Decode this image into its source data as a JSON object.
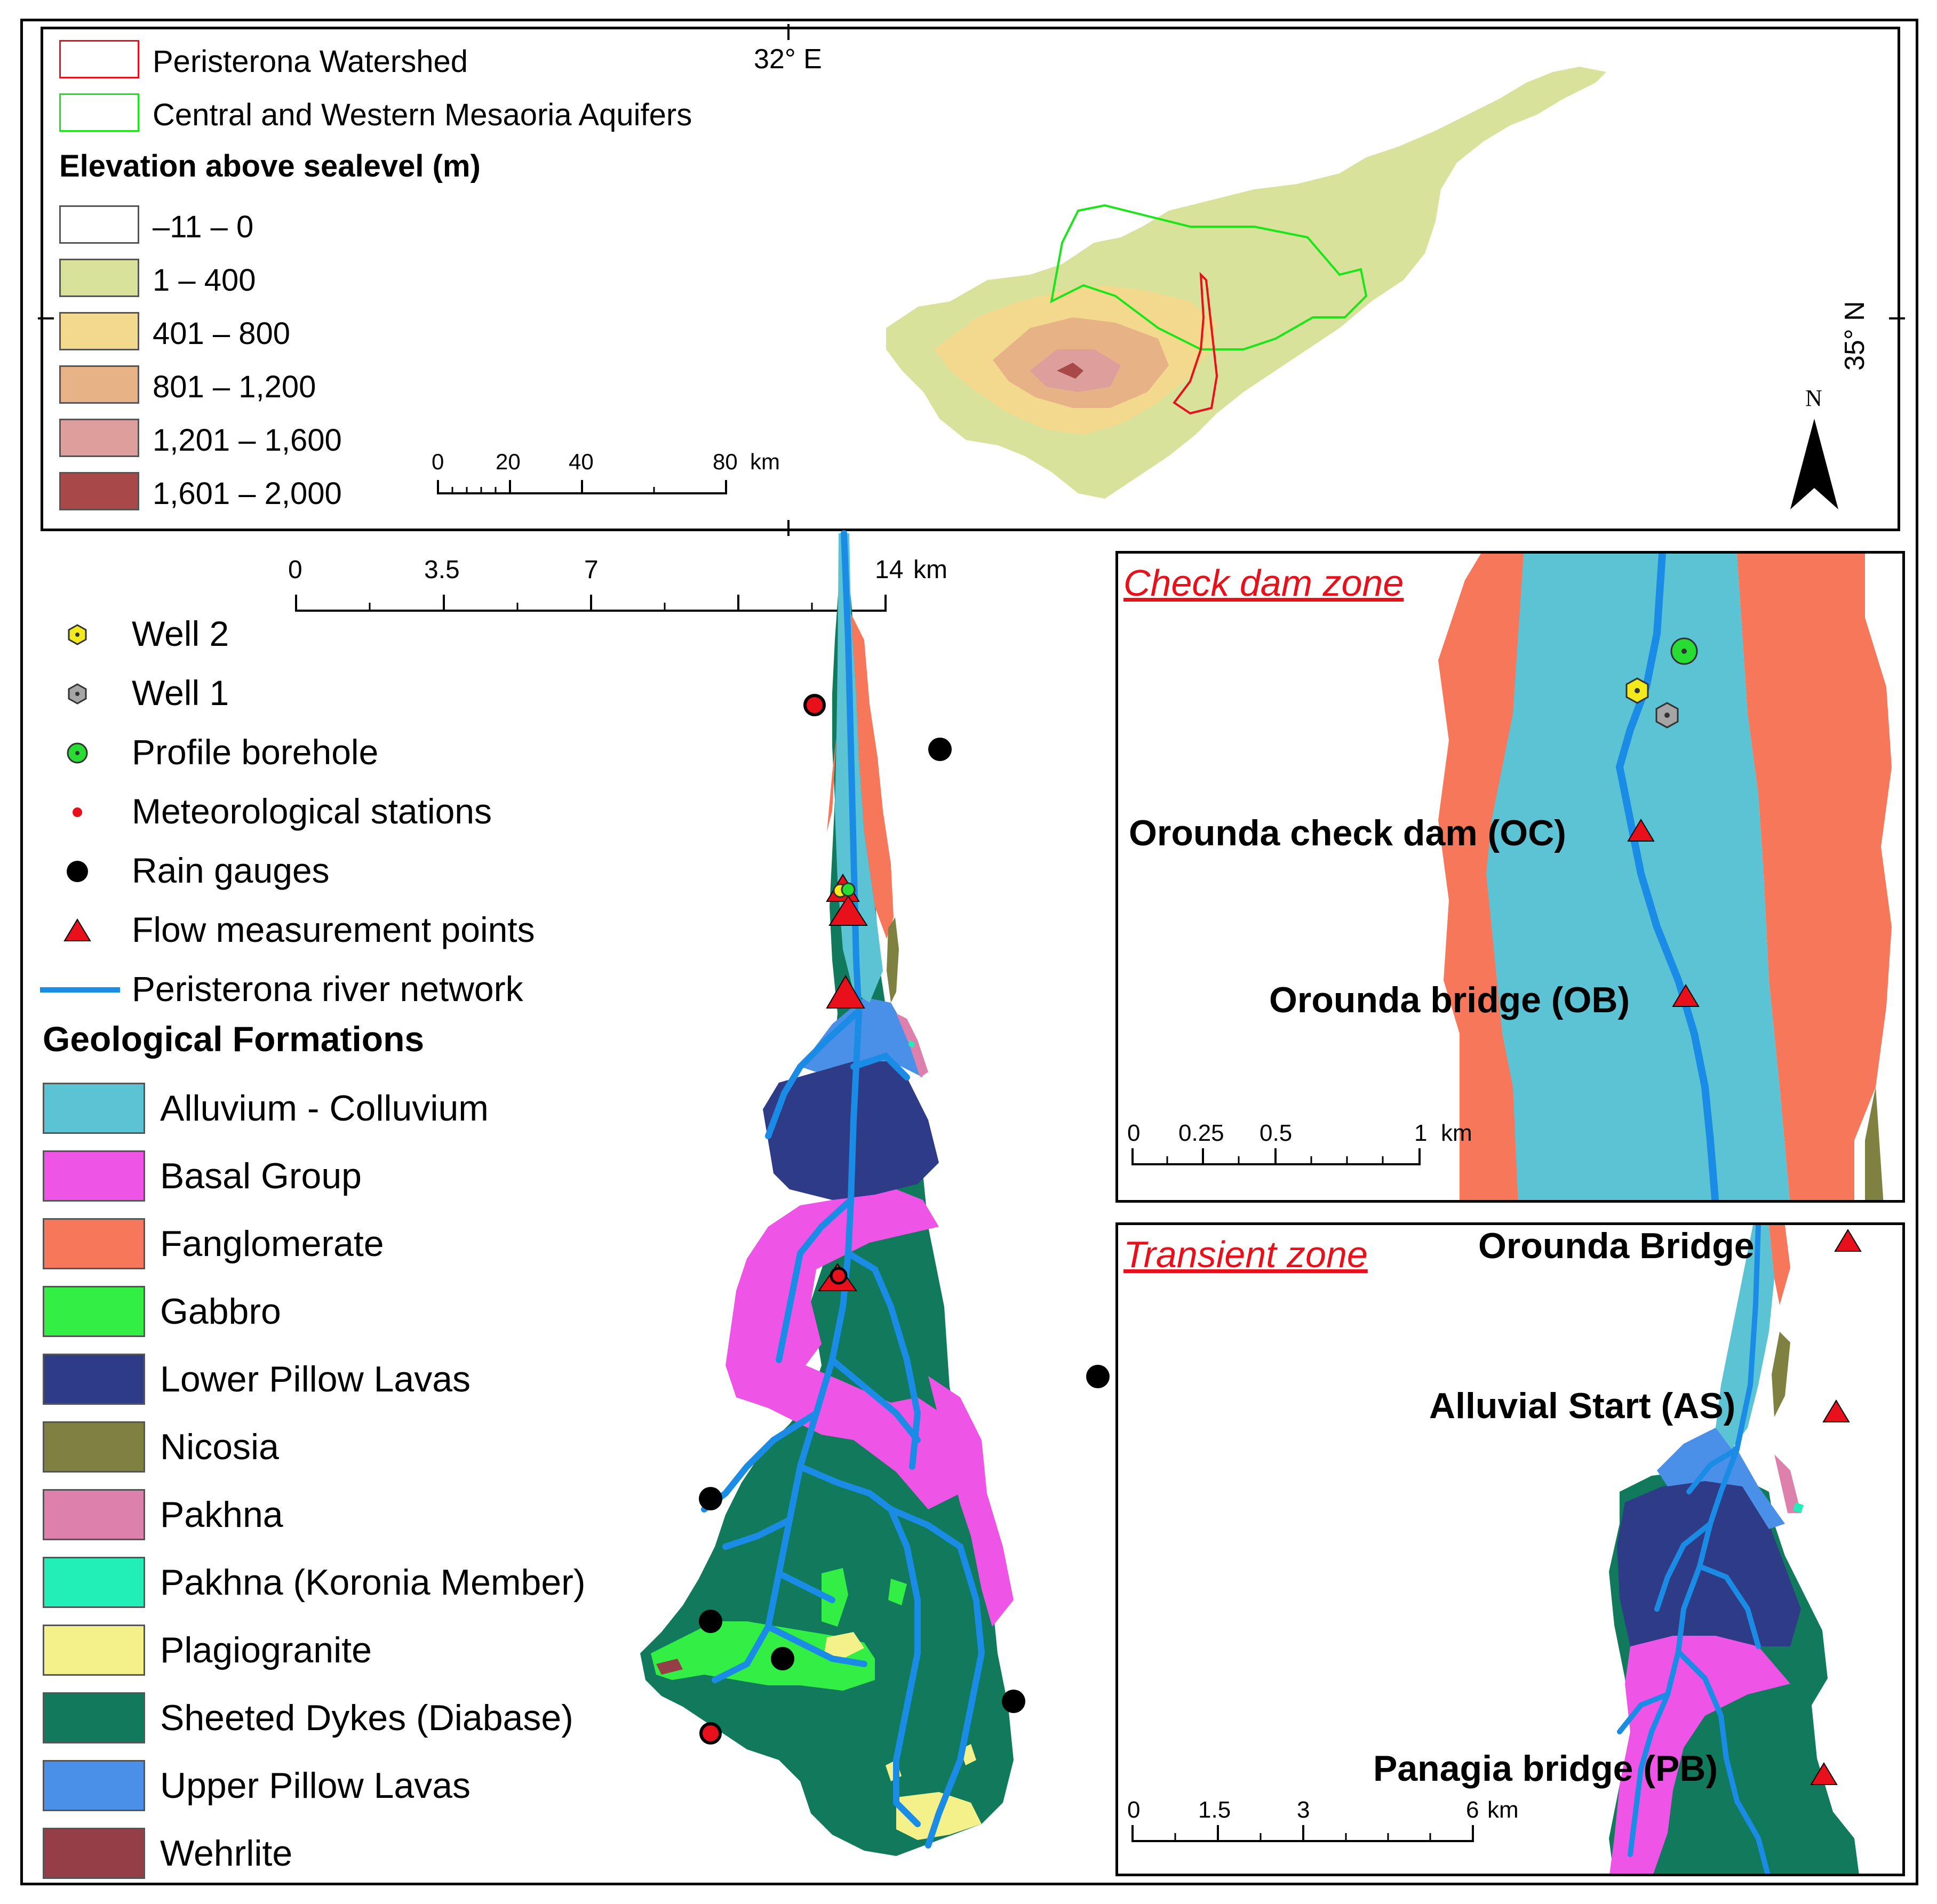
{
  "overview": {
    "legend_top": [
      {
        "label": "Peristerona Watershed",
        "color": "#e8101a"
      },
      {
        "label": "Central and Western Mesaoria Aquifers",
        "color": "#19e619"
      }
    ],
    "elevation_title": "Elevation above sealevel (m)",
    "elevation_classes": [
      {
        "label": "–11 – 0",
        "color": "#ffffff"
      },
      {
        "label": "1 – 400",
        "color": "#d9e29a"
      },
      {
        "label": "401 – 800",
        "color": "#f2d98e"
      },
      {
        "label": "801 – 1,200",
        "color": "#e8b287"
      },
      {
        "label": "1,201 – 1,600",
        "color": "#dc9f9c"
      },
      {
        "label": "1,601 – 2,000",
        "color": "#a84848"
      }
    ],
    "scale_labels": [
      "0",
      "20",
      "40",
      "80"
    ],
    "scale_unit": "km",
    "longitude_label": "32° E",
    "latitude_label": "35° N",
    "north_label": "N"
  },
  "main_map": {
    "scale_labels": [
      "0",
      "3.5",
      "7",
      "14"
    ],
    "scale_unit": "km",
    "point_legend": [
      {
        "label": "Well 2",
        "icon": "yellow-hexagon-icon"
      },
      {
        "label": "Well 1",
        "icon": "gray-hexagon-icon"
      },
      {
        "label": "Profile borehole",
        "icon": "green-circle-icon"
      },
      {
        "label": "Meteorological stations",
        "icon": "red-dot-icon"
      },
      {
        "label": "Rain gauges",
        "icon": "black-dot-icon"
      },
      {
        "label": "Flow measurement points",
        "icon": "red-triangle-icon"
      },
      {
        "label": "Peristerona river network",
        "icon": "blue-line-icon"
      }
    ],
    "geology_title": "Geological Formations",
    "geology": [
      {
        "label": "Alluvium - Colluvium",
        "color": "#5bc3d4"
      },
      {
        "label": "Basal Group",
        "color": "#ee55e6"
      },
      {
        "label": "Fanglomerate",
        "color": "#f6775a"
      },
      {
        "label": "Gabbro",
        "color": "#33ee44"
      },
      {
        "label": "Lower Pillow Lavas",
        "color": "#2e3b87"
      },
      {
        "label": "Nicosia",
        "color": "#7f8141"
      },
      {
        "label": "Pakhna",
        "color": "#dd80ac"
      },
      {
        "label": "Pakhna (Koronia Member)",
        "color": "#22eeb8"
      },
      {
        "label": "Plagiogranite",
        "color": "#f4f08a"
      },
      {
        "label": "Sheeted Dykes (Diabase)",
        "color": "#127a5c"
      },
      {
        "label": "Upper Pillow Lavas",
        "color": "#4a90e8"
      },
      {
        "label": "Wehrlite",
        "color": "#953e48"
      }
    ],
    "river_color": "#1a8ce6"
  },
  "check_dam_inset": {
    "title": "Check dam zone",
    "labels": [
      "Orounda check dam (OC)",
      "Orounda bridge (OB)"
    ],
    "scale_labels": [
      "0",
      "0.25",
      "0.5",
      "1"
    ],
    "scale_unit": "km"
  },
  "transient_inset": {
    "title": "Transient zone",
    "labels": [
      "Orounda Bridge",
      "Alluvial Start (AS)",
      "Panagia bridge (PB)"
    ],
    "scale_labels": [
      "0",
      "1.5",
      "3",
      "6"
    ],
    "scale_unit": "km"
  }
}
